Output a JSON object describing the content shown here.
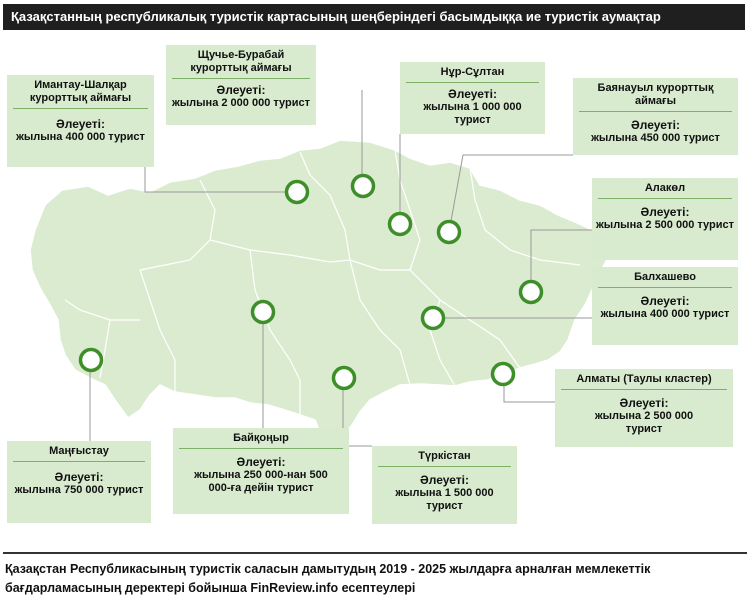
{
  "title": "Қазақстанның республикалық туристік картасының шеңберіндегі басымдыққа ие туристік аумақтар",
  "colors": {
    "land": "#dbebd0",
    "marker_ring": "#3e8f2a",
    "box_fill": "#d9ebcf",
    "box_rule": "#7fb068",
    "title_bg": "#1f1f1f"
  },
  "regions": [
    {
      "name": "Имантау-Шалқар курорттық аймағы",
      "label": "Әлеуеті:",
      "value": "жылына 400 000 турист"
    },
    {
      "name": "Щучье-Бурабай курорттық аймағы",
      "label": "Әлеуеті:",
      "value": "жылына 2 000 000 турист"
    },
    {
      "name": "Нұр-Сұлтан",
      "label": "Әлеуеті:",
      "value": "жылына 1 000 000 турист"
    },
    {
      "name": "Баянауыл курорттық аймағы",
      "label": "Әлеуеті:",
      "value": "жылына 450 000 турист"
    },
    {
      "name": "Алакөл",
      "label": "Әлеуеті:",
      "value": "жылына 2 500 000 турист"
    },
    {
      "name": "Балхашево",
      "label": "Әлеуеті:",
      "value": "жылына 400 000 турист"
    },
    {
      "name": "Алматы (Таулы кластер)",
      "label": "Әлеуеті:",
      "value": "жылына 2 500 000 турист"
    },
    {
      "name": "Түркістан",
      "label": "Әлеуеті:",
      "value": "жылына 1 500 000 турист"
    },
    {
      "name": "Байқоңыр",
      "label": "Әлеуеті:",
      "value": "жылына 250 000-нан 500 000-ға дейін турист"
    },
    {
      "name": "Маңғыстау",
      "label": "Әлеуеті:",
      "value": "жылына 750 000 турист"
    }
  ],
  "footer": "Қазақстан Республикасының туристік саласын дамытудың 2019 - 2025 жылдарға арналған мемлекеттік бағдарламасының деректері бойынша FinReview.info есептеулері"
}
